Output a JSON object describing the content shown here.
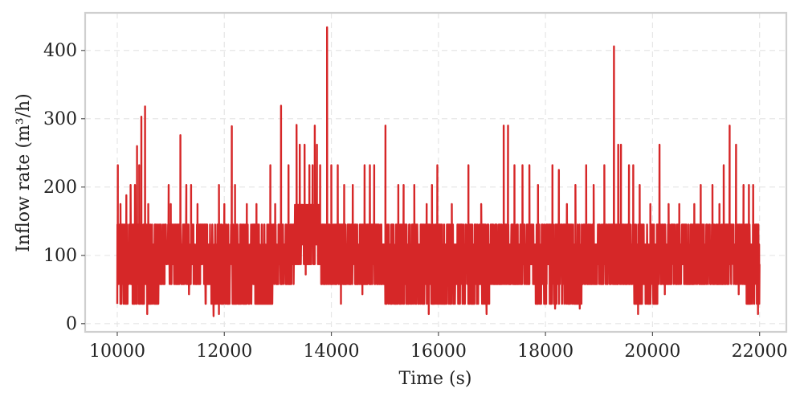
{
  "chart_data": {
    "type": "line",
    "title": "",
    "xlabel": "Time (s)",
    "ylabel": "Inflow rate (m³/h)",
    "xlim": [
      9400,
      22500
    ],
    "ylim": [
      -12,
      455
    ],
    "xticks": [
      10000,
      12000,
      14000,
      16000,
      18000,
      20000,
      22000
    ],
    "xtick_labels": [
      "10000",
      "12000",
      "14000",
      "16000",
      "18000",
      "20000",
      "22000"
    ],
    "yticks": [
      0,
      100,
      200,
      300,
      400
    ],
    "ytick_labels": [
      "0",
      "100",
      "200",
      "300",
      "400"
    ],
    "grid": true,
    "colors": {
      "series": "#d62728",
      "frame": "#cfcfcf",
      "grid": "#e6e6e6"
    },
    "series": [
      {
        "color": "#d62728",
        "segments": [
          {
            "x_start": 10000,
            "x_end": 10800,
            "min": 29,
            "max": 145
          },
          {
            "x_start": 10800,
            "x_end": 11650,
            "min": 58,
            "max": 145
          },
          {
            "x_start": 11650,
            "x_end": 12900,
            "min": 29,
            "max": 145
          },
          {
            "x_start": 12900,
            "x_end": 13300,
            "min": 58,
            "max": 145
          },
          {
            "x_start": 13300,
            "x_end": 13800,
            "min": 87,
            "max": 175
          },
          {
            "x_start": 13800,
            "x_end": 15000,
            "min": 58,
            "max": 145
          },
          {
            "x_start": 15000,
            "x_end": 16950,
            "min": 29,
            "max": 145
          },
          {
            "x_start": 16950,
            "x_end": 17800,
            "min": 58,
            "max": 145
          },
          {
            "x_start": 17800,
            "x_end": 18700,
            "min": 29,
            "max": 145
          },
          {
            "x_start": 18700,
            "x_end": 19600,
            "min": 58,
            "max": 145
          },
          {
            "x_start": 19600,
            "x_end": 20100,
            "min": 29,
            "max": 145
          },
          {
            "x_start": 20100,
            "x_end": 21000,
            "min": 58,
            "max": 145
          },
          {
            "x_start": 21000,
            "x_end": 21750,
            "min": 58,
            "max": 145
          },
          {
            "x_start": 21750,
            "x_end": 22000,
            "min": 29,
            "max": 145
          }
        ],
        "spikes": [
          {
            "x": 10010,
            "y": 232
          },
          {
            "x": 10060,
            "y": 175
          },
          {
            "x": 10170,
            "y": 188
          },
          {
            "x": 10250,
            "y": 203
          },
          {
            "x": 10330,
            "y": 203
          },
          {
            "x": 10370,
            "y": 260
          },
          {
            "x": 10410,
            "y": 232
          },
          {
            "x": 10450,
            "y": 303
          },
          {
            "x": 10520,
            "y": 318
          },
          {
            "x": 10580,
            "y": 175
          },
          {
            "x": 10650,
            "y": 145
          },
          {
            "x": 10960,
            "y": 203
          },
          {
            "x": 11000,
            "y": 175
          },
          {
            "x": 11180,
            "y": 276
          },
          {
            "x": 11290,
            "y": 203
          },
          {
            "x": 11380,
            "y": 203
          },
          {
            "x": 11500,
            "y": 175
          },
          {
            "x": 11680,
            "y": 145
          },
          {
            "x": 11900,
            "y": 203
          },
          {
            "x": 12000,
            "y": 175
          },
          {
            "x": 12140,
            "y": 289
          },
          {
            "x": 12200,
            "y": 203
          },
          {
            "x": 12420,
            "y": 175
          },
          {
            "x": 12600,
            "y": 175
          },
          {
            "x": 12860,
            "y": 232
          },
          {
            "x": 12950,
            "y": 175
          },
          {
            "x": 13060,
            "y": 319
          },
          {
            "x": 13200,
            "y": 232
          },
          {
            "x": 13350,
            "y": 291
          },
          {
            "x": 13410,
            "y": 262
          },
          {
            "x": 13500,
            "y": 262
          },
          {
            "x": 13590,
            "y": 232
          },
          {
            "x": 13650,
            "y": 232
          },
          {
            "x": 13690,
            "y": 290
          },
          {
            "x": 13730,
            "y": 262
          },
          {
            "x": 13790,
            "y": 232
          },
          {
            "x": 13920,
            "y": 434
          },
          {
            "x": 14000,
            "y": 232
          },
          {
            "x": 14120,
            "y": 232
          },
          {
            "x": 14240,
            "y": 203
          },
          {
            "x": 14400,
            "y": 203
          },
          {
            "x": 14620,
            "y": 232
          },
          {
            "x": 14720,
            "y": 232
          },
          {
            "x": 14800,
            "y": 232
          },
          {
            "x": 15010,
            "y": 290
          },
          {
            "x": 15250,
            "y": 203
          },
          {
            "x": 15350,
            "y": 203
          },
          {
            "x": 15550,
            "y": 203
          },
          {
            "x": 15780,
            "y": 175
          },
          {
            "x": 15880,
            "y": 203
          },
          {
            "x": 15980,
            "y": 232
          },
          {
            "x": 16250,
            "y": 175
          },
          {
            "x": 16560,
            "y": 232
          },
          {
            "x": 16800,
            "y": 175
          },
          {
            "x": 16920,
            "y": 145
          },
          {
            "x": 17220,
            "y": 290
          },
          {
            "x": 17300,
            "y": 290
          },
          {
            "x": 17420,
            "y": 232
          },
          {
            "x": 17570,
            "y": 232
          },
          {
            "x": 17700,
            "y": 232
          },
          {
            "x": 17860,
            "y": 203
          },
          {
            "x": 18130,
            "y": 232
          },
          {
            "x": 18250,
            "y": 225
          },
          {
            "x": 18400,
            "y": 175
          },
          {
            "x": 18560,
            "y": 203
          },
          {
            "x": 18760,
            "y": 232
          },
          {
            "x": 18900,
            "y": 203
          },
          {
            "x": 19100,
            "y": 232
          },
          {
            "x": 19280,
            "y": 406
          },
          {
            "x": 19360,
            "y": 262
          },
          {
            "x": 19410,
            "y": 262
          },
          {
            "x": 19560,
            "y": 232
          },
          {
            "x": 19640,
            "y": 232
          },
          {
            "x": 19760,
            "y": 203
          },
          {
            "x": 19960,
            "y": 175
          },
          {
            "x": 20130,
            "y": 262
          },
          {
            "x": 20300,
            "y": 175
          },
          {
            "x": 20500,
            "y": 175
          },
          {
            "x": 20780,
            "y": 175
          },
          {
            "x": 20900,
            "y": 203
          },
          {
            "x": 21120,
            "y": 203
          },
          {
            "x": 21250,
            "y": 175
          },
          {
            "x": 21330,
            "y": 232
          },
          {
            "x": 21440,
            "y": 290
          },
          {
            "x": 21560,
            "y": 262
          },
          {
            "x": 21700,
            "y": 203
          },
          {
            "x": 21800,
            "y": 203
          },
          {
            "x": 21880,
            "y": 203
          },
          {
            "x": 21940,
            "y": 145
          }
        ],
        "dips": [
          {
            "x": 10560,
            "y": 14
          },
          {
            "x": 11340,
            "y": 43
          },
          {
            "x": 11800,
            "y": 11
          },
          {
            "x": 11900,
            "y": 14
          },
          {
            "x": 13520,
            "y": 72
          },
          {
            "x": 13910,
            "y": 58
          },
          {
            "x": 14180,
            "y": 29
          },
          {
            "x": 14580,
            "y": 43
          },
          {
            "x": 14890,
            "y": 58
          },
          {
            "x": 15130,
            "y": 29
          },
          {
            "x": 15820,
            "y": 14
          },
          {
            "x": 16900,
            "y": 14
          },
          {
            "x": 18000,
            "y": 29
          },
          {
            "x": 18180,
            "y": 22
          },
          {
            "x": 18440,
            "y": 29
          },
          {
            "x": 18640,
            "y": 22
          },
          {
            "x": 19730,
            "y": 14
          },
          {
            "x": 20230,
            "y": 43
          },
          {
            "x": 20530,
            "y": 58
          },
          {
            "x": 21610,
            "y": 43
          },
          {
            "x": 21900,
            "y": 29
          },
          {
            "x": 21970,
            "y": 14
          }
        ]
      }
    ]
  }
}
